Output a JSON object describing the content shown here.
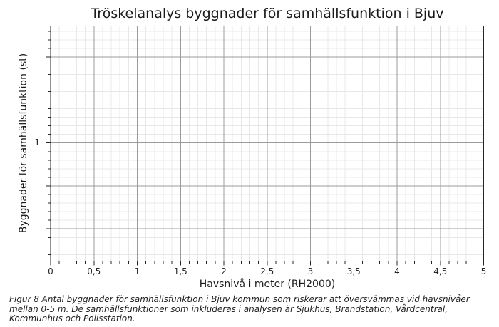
{
  "title": "Tröskelanalys byggnader för samhällsfunktion i Bjuv",
  "chart_data": {
    "type": "line",
    "title": "Tröskelanalys byggnader för samhällsfunktion i Bjuv",
    "xlabel": "Havsnivå i meter (RH2000)",
    "ylabel": "Byggnader för samhällsfunktion (st)",
    "xlim": [
      0,
      5
    ],
    "x_tick_labels": [
      "0",
      "0,5",
      "1",
      "1,5",
      "2",
      "2,5",
      "3",
      "3,5",
      "4",
      "4,5",
      "5"
    ],
    "y_scale": "log",
    "y_tick_labels": [
      "1"
    ],
    "grid": "major and minor gridlines on, full box frame, ticks on left and bottom only",
    "legend": "none",
    "series": [],
    "note": "plot area is empty - no data curve is drawn, only the grid"
  },
  "colors": {
    "background": "#ffffff",
    "spine": "#262626",
    "major_grid": "#9b9b9b",
    "minor_grid": "#e8e8e8",
    "text": "#1a1a1a"
  },
  "caption": {
    "lines": [
      "Figur 8 Antal byggnader för samhällsfunktion i Bjuv kommun som riskerar att översvämmas vid havsnivåer",
      "mellan 0-5 m. De samhällsfunktioner som inkluderas i analysen är Sjukhus, Brandstation, Vårdcentral,",
      "Kommunhus och Polisstation."
    ],
    "full": "Figur 8 Antal byggnader för samhällsfunktion i Bjuv kommun som riskerar att översvämmas vid havsnivåer mellan 0-5 m. De samhällsfunktioner som inkluderas i analysen är Sjukhus, Brandstation, Vårdcentral, Kommunhus och Polisstation."
  }
}
